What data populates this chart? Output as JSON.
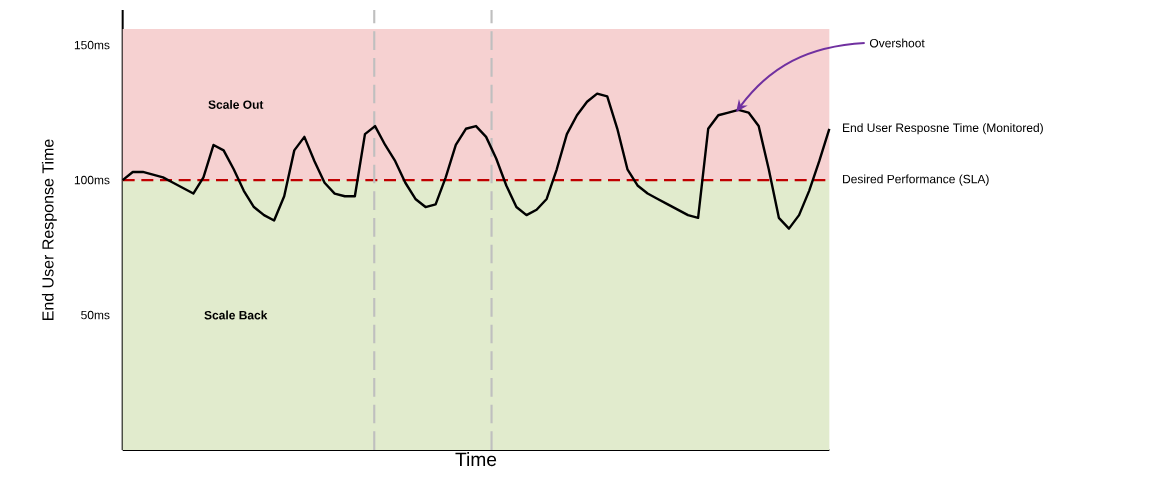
{
  "chart_data": {
    "type": "line",
    "xlabel": "Time",
    "ylabel": "End User Response Time",
    "categories": [
      null,
      null,
      null,
      null,
      null,
      null,
      null,
      null,
      null,
      null,
      null,
      null,
      null,
      null,
      null,
      null,
      null,
      null,
      null,
      null,
      null,
      null,
      null,
      null,
      null,
      null,
      null,
      null,
      null,
      null,
      null,
      null,
      null,
      null,
      null,
      null,
      null,
      null,
      null,
      null,
      null,
      null,
      null,
      null,
      null,
      null,
      null,
      null,
      null,
      null,
      null,
      null,
      null,
      null,
      null,
      null,
      null,
      null,
      null,
      null,
      null,
      null,
      null,
      null,
      null,
      null,
      null,
      null,
      null,
      null,
      null
    ],
    "ylim": [
      0,
      163
    ],
    "yticks": [
      {
        "value": 50,
        "label": "50ms"
      },
      {
        "value": 100,
        "label": "100ms"
      },
      {
        "value": 150,
        "label": "150ms"
      }
    ],
    "tick_labels": "y",
    "series": [
      {
        "name": "End User Resposne Time (Monitored)",
        "color": "#000000",
        "values": [
          100,
          103,
          103,
          102,
          101,
          99,
          97,
          95,
          101,
          113,
          111,
          104,
          96,
          90,
          87,
          85,
          94,
          111,
          116,
          107,
          99,
          95,
          94,
          94,
          117,
          120,
          113,
          107,
          99,
          93,
          90,
          91,
          101,
          113,
          119,
          120,
          116,
          108,
          98,
          90,
          87,
          89,
          93,
          104,
          117,
          124,
          129,
          132,
          131,
          119,
          104,
          98,
          95,
          93,
          91,
          89,
          87,
          86,
          119,
          124,
          125,
          126,
          125,
          120,
          104,
          86,
          82,
          87,
          96,
          107,
          119
        ]
      }
    ],
    "ref_lines": [
      {
        "axis": "y",
        "value": 100,
        "label": "Desired Performance (SLA)",
        "color": "#c00000",
        "line_style": "dashed"
      }
    ],
    "bands": [
      {
        "axis": "y",
        "from": 100,
        "to": 156,
        "label": "Scale Out",
        "color": "#f6d1d1"
      },
      {
        "axis": "y",
        "from": 0,
        "to": 100,
        "label": "Scale Back",
        "color": "#e1ebcd"
      }
    ],
    "annotations": [
      "Overshoot"
    ],
    "legend": "right",
    "marker": "none",
    "line_style": "solid"
  }
}
